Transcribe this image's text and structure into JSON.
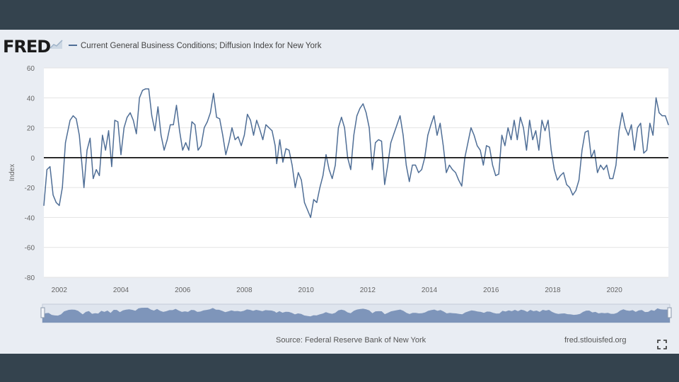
{
  "header": {
    "logo_text": "FRED",
    "series_title": "Current General Business Conditions; Diffusion Index for New York"
  },
  "footer": {
    "source": "Source: Federal Reserve Bank of New York",
    "site": "fred.stlouisfed.org"
  },
  "icons": {
    "logo_mark": "chart-spark-icon",
    "fullscreen": "fullscreen-icon"
  },
  "colors": {
    "line": "#4f6e96",
    "zero_line": "#111111",
    "plot_bg": "#ffffff",
    "panel_bg": "#e9edf3",
    "navigator_fill": "#6d87b0"
  },
  "chart_data": {
    "type": "line",
    "ylabel": "Index",
    "ylim": [
      -80,
      60
    ],
    "yticks": [
      60,
      40,
      20,
      0,
      -20,
      -40,
      -60,
      -80
    ],
    "xlim": [
      2001.5,
      2021.75
    ],
    "xticks": [
      "2002",
      "2004",
      "2006",
      "2008",
      "2010",
      "2012",
      "2014",
      "2016",
      "2018",
      "2020"
    ],
    "zero_line": true,
    "grid": "horizontal",
    "series": [
      {
        "name": "Current General Business Conditions; Diffusion Index for New York",
        "points": [
          [
            2001.5,
            -32
          ],
          [
            2001.6,
            -8
          ],
          [
            2001.7,
            -6
          ],
          [
            2001.8,
            -25
          ],
          [
            2001.9,
            -30
          ],
          [
            2002.0,
            -32
          ],
          [
            2002.1,
            -20
          ],
          [
            2002.2,
            10
          ],
          [
            2002.35,
            25
          ],
          [
            2002.45,
            28
          ],
          [
            2002.55,
            26
          ],
          [
            2002.65,
            15
          ],
          [
            2002.75,
            -8
          ],
          [
            2002.8,
            -20
          ],
          [
            2002.9,
            5
          ],
          [
            2003.0,
            13
          ],
          [
            2003.1,
            -14
          ],
          [
            2003.2,
            -8
          ],
          [
            2003.3,
            -12
          ],
          [
            2003.4,
            15
          ],
          [
            2003.5,
            5
          ],
          [
            2003.6,
            18
          ],
          [
            2003.7,
            -6
          ],
          [
            2003.8,
            25
          ],
          [
            2003.9,
            24
          ],
          [
            2004.0,
            2
          ],
          [
            2004.1,
            20
          ],
          [
            2004.2,
            27
          ],
          [
            2004.3,
            30
          ],
          [
            2004.4,
            25
          ],
          [
            2004.5,
            16
          ],
          [
            2004.6,
            40
          ],
          [
            2004.7,
            45
          ],
          [
            2004.8,
            46
          ],
          [
            2004.9,
            46
          ],
          [
            2005.0,
            28
          ],
          [
            2005.1,
            18
          ],
          [
            2005.2,
            34
          ],
          [
            2005.3,
            15
          ],
          [
            2005.4,
            5
          ],
          [
            2005.5,
            12
          ],
          [
            2005.6,
            22
          ],
          [
            2005.7,
            22
          ],
          [
            2005.8,
            35
          ],
          [
            2005.9,
            18
          ],
          [
            2006.0,
            5
          ],
          [
            2006.1,
            10
          ],
          [
            2006.2,
            5
          ],
          [
            2006.3,
            24
          ],
          [
            2006.4,
            22
          ],
          [
            2006.5,
            5
          ],
          [
            2006.6,
            8
          ],
          [
            2006.7,
            20
          ],
          [
            2006.8,
            24
          ],
          [
            2006.9,
            30
          ],
          [
            2007.0,
            43
          ],
          [
            2007.1,
            27
          ],
          [
            2007.2,
            26
          ],
          [
            2007.3,
            15
          ],
          [
            2007.4,
            2
          ],
          [
            2007.5,
            10
          ],
          [
            2007.6,
            20
          ],
          [
            2007.7,
            12
          ],
          [
            2007.8,
            14
          ],
          [
            2007.9,
            8
          ],
          [
            2008.0,
            15
          ],
          [
            2008.1,
            29
          ],
          [
            2008.2,
            25
          ],
          [
            2008.3,
            15
          ],
          [
            2008.4,
            25
          ],
          [
            2008.5,
            19
          ],
          [
            2008.6,
            12
          ],
          [
            2008.7,
            22
          ],
          [
            2008.8,
            20
          ],
          [
            2008.9,
            18
          ],
          [
            2009.0,
            8
          ],
          [
            2009.05,
            -4
          ],
          [
            2009.15,
            12
          ],
          [
            2009.25,
            -3
          ],
          [
            2009.35,
            6
          ],
          [
            2009.45,
            5
          ],
          [
            2009.55,
            -5
          ],
          [
            2009.65,
            -20
          ],
          [
            2009.75,
            -10
          ],
          [
            2009.85,
            -15
          ],
          [
            2009.95,
            -30
          ],
          [
            2010.05,
            -35
          ],
          [
            2010.15,
            -40
          ],
          [
            2010.25,
            -28
          ],
          [
            2010.35,
            -30
          ],
          [
            2010.45,
            -20
          ],
          [
            2010.55,
            -12
          ],
          [
            2010.65,
            2
          ],
          [
            2010.75,
            -8
          ],
          [
            2010.85,
            -14
          ],
          [
            2010.95,
            -5
          ],
          [
            2011.05,
            20
          ],
          [
            2011.15,
            27
          ],
          [
            2011.25,
            20
          ],
          [
            2011.35,
            0
          ],
          [
            2011.45,
            -8
          ],
          [
            2011.55,
            15
          ],
          [
            2011.65,
            28
          ],
          [
            2011.75,
            33
          ],
          [
            2011.85,
            36
          ],
          [
            2011.95,
            30
          ],
          [
            2012.05,
            20
          ],
          [
            2012.15,
            -8
          ],
          [
            2012.25,
            10
          ],
          [
            2012.35,
            12
          ],
          [
            2012.45,
            11
          ],
          [
            2012.55,
            -18
          ],
          [
            2012.65,
            -5
          ],
          [
            2012.75,
            10
          ],
          [
            2012.85,
            16
          ],
          [
            2012.95,
            22
          ],
          [
            2013.05,
            28
          ],
          [
            2013.15,
            15
          ],
          [
            2013.25,
            -5
          ],
          [
            2013.35,
            -16
          ],
          [
            2013.45,
            -5
          ],
          [
            2013.55,
            -5
          ],
          [
            2013.65,
            -10
          ],
          [
            2013.75,
            -8
          ],
          [
            2013.85,
            0
          ],
          [
            2013.95,
            15
          ],
          [
            2014.05,
            22
          ],
          [
            2014.15,
            28
          ],
          [
            2014.25,
            15
          ],
          [
            2014.35,
            23
          ],
          [
            2014.45,
            8
          ],
          [
            2014.55,
            -10
          ],
          [
            2014.65,
            -5
          ],
          [
            2014.75,
            -8
          ],
          [
            2014.85,
            -10
          ],
          [
            2014.95,
            -15
          ],
          [
            2015.05,
            -19
          ],
          [
            2015.15,
            0
          ],
          [
            2015.25,
            10
          ],
          [
            2015.35,
            20
          ],
          [
            2015.45,
            15
          ],
          [
            2015.55,
            8
          ],
          [
            2015.65,
            5
          ],
          [
            2015.75,
            -5
          ],
          [
            2015.85,
            8
          ],
          [
            2015.95,
            7
          ],
          [
            2016.05,
            -5
          ],
          [
            2016.15,
            -12
          ],
          [
            2016.25,
            -11
          ],
          [
            2016.35,
            15
          ],
          [
            2016.45,
            8
          ],
          [
            2016.55,
            20
          ],
          [
            2016.65,
            12
          ],
          [
            2016.75,
            25
          ],
          [
            2016.85,
            12
          ],
          [
            2016.95,
            27
          ],
          [
            2017.05,
            20
          ],
          [
            2017.15,
            5
          ],
          [
            2017.25,
            25
          ],
          [
            2017.35,
            12
          ],
          [
            2017.45,
            18
          ],
          [
            2017.55,
            5
          ],
          [
            2017.65,
            25
          ],
          [
            2017.75,
            18
          ],
          [
            2017.85,
            25
          ],
          [
            2017.95,
            5
          ],
          [
            2018.05,
            -8
          ],
          [
            2018.15,
            -15
          ],
          [
            2018.25,
            -12
          ],
          [
            2018.35,
            -10
          ],
          [
            2018.45,
            -18
          ],
          [
            2018.55,
            -20
          ],
          [
            2018.65,
            -25
          ],
          [
            2018.75,
            -22
          ],
          [
            2018.85,
            -15
          ],
          [
            2018.95,
            5
          ],
          [
            2019.05,
            17
          ],
          [
            2019.15,
            18
          ],
          [
            2019.25,
            0
          ],
          [
            2019.35,
            5
          ],
          [
            2019.45,
            -10
          ],
          [
            2019.55,
            -5
          ],
          [
            2019.65,
            -8
          ],
          [
            2019.75,
            -5
          ],
          [
            2019.85,
            -14
          ],
          [
            2019.95,
            -14
          ],
          [
            2020.05,
            -5
          ],
          [
            2020.15,
            18
          ],
          [
            2020.25,
            30
          ],
          [
            2020.35,
            20
          ],
          [
            2020.45,
            15
          ],
          [
            2020.55,
            22
          ],
          [
            2020.65,
            5
          ],
          [
            2020.75,
            20
          ],
          [
            2020.85,
            23
          ],
          [
            2020.95,
            3
          ],
          [
            2021.05,
            5
          ],
          [
            2021.15,
            23
          ],
          [
            2021.25,
            15
          ],
          [
            2021.35,
            40
          ],
          [
            2021.45,
            30
          ],
          [
            2021.55,
            28
          ],
          [
            2021.65,
            28
          ],
          [
            2021.75,
            22
          ]
        ]
      }
    ]
  }
}
